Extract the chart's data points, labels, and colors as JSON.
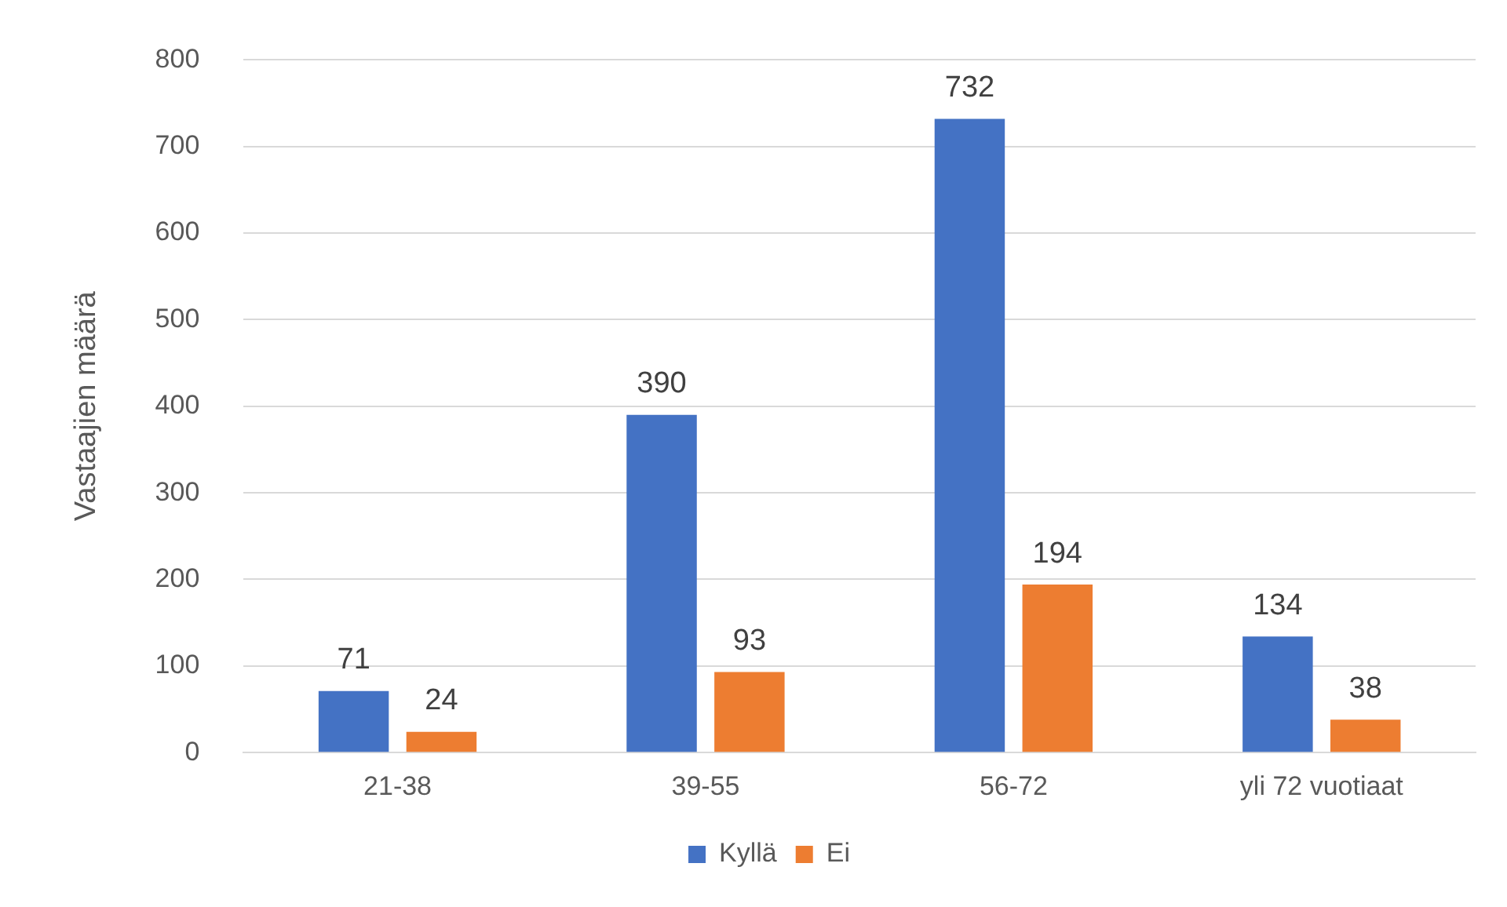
{
  "chart_data": {
    "type": "bar",
    "ylabel": "Vastaajien määrä",
    "categories": [
      "21-38",
      "39-55",
      "56-72",
      "yli 72 vuotiaat"
    ],
    "series": [
      {
        "name": "Kyllä",
        "color": "#4472c4",
        "values": [
          71,
          390,
          732,
          134
        ]
      },
      {
        "name": "Ei",
        "color": "#ed7d31",
        "values": [
          24,
          93,
          194,
          38
        ]
      }
    ],
    "ylim": [
      0,
      800
    ],
    "yticks": [
      0,
      100,
      200,
      300,
      400,
      500,
      600,
      700,
      800
    ],
    "grid": "y",
    "legend": "bottom",
    "data_labels": true
  }
}
